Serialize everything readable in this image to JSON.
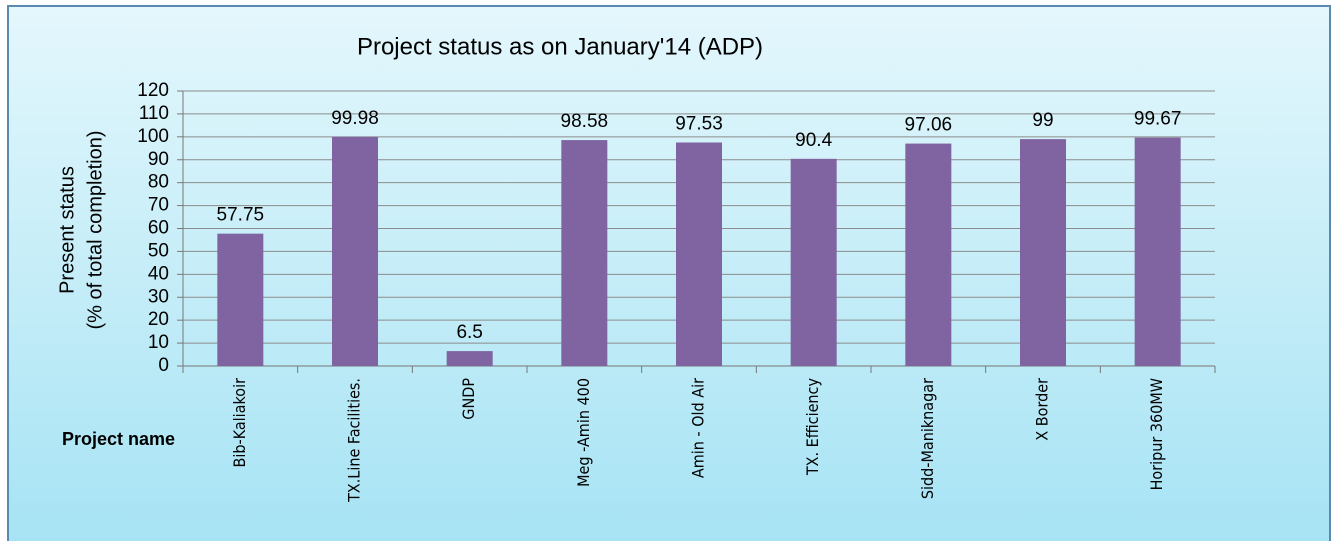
{
  "chart_data": {
    "type": "bar",
    "title": "Project  status as on  January'14 (ADP)",
    "y_label": [
      "Present status",
      "(% of total completion)"
    ],
    "x_label": "Project name",
    "categories": [
      "Bib-Kaliakoir",
      "TX.Line Facilities.",
      "GNDP",
      "Meg -Amin 400",
      "Amin - Old Air",
      "TX. Efficiency",
      "Sidd-Maniknagar",
      "X Border",
      "Horipur 360MW"
    ],
    "values": [
      57.75,
      99.98,
      6.5,
      98.58,
      97.53,
      90.4,
      97.06,
      99,
      99.67
    ],
    "color": "#8064a2",
    "ylim": [
      0,
      120
    ],
    "yticks": [
      0,
      10,
      20,
      30,
      40,
      50,
      60,
      70,
      80,
      90,
      100,
      110,
      120
    ],
    "grid": true
  }
}
